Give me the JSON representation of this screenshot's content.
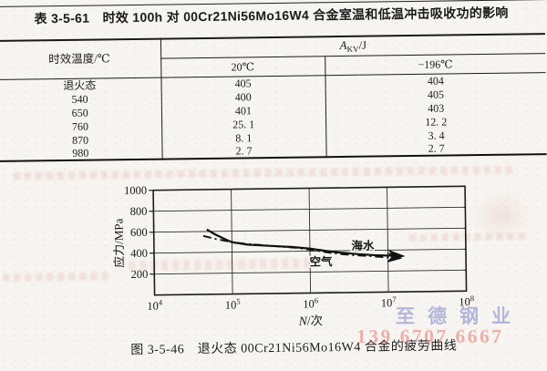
{
  "table": {
    "title": "表 3-5-61　时效 100h 对 00Cr21Ni56Mo16W4 合金室温和低温冲击吸收功的影响",
    "col1_header": "时效温度/℃",
    "akv": {
      "symbol": "A",
      "sub": "KV",
      "unit": "/J"
    },
    "subheaders": [
      "20℃",
      "−196℃"
    ],
    "rows": [
      {
        "temp": "退火态",
        "v20": "405",
        "vm196": "404"
      },
      {
        "temp": "540",
        "v20": "400",
        "vm196": "405"
      },
      {
        "temp": "650",
        "v20": "401",
        "vm196": "403"
      },
      {
        "temp": "760",
        "v20": "25. 1",
        "vm196": "12. 2"
      },
      {
        "temp": "870",
        "v20": "8. 1",
        "vm196": "3. 4"
      },
      {
        "temp": "980",
        "v20": "2. 7",
        "vm196": "2. 7"
      }
    ]
  },
  "figure": {
    "caption": "图 3-5-46　退火态 00Cr21Ni56Mo16W4 合金的疲劳曲线"
  },
  "watermark": {
    "company": "至德钢业",
    "phone": "139 6707 6667"
  },
  "chart_data": {
    "type": "line",
    "title": "",
    "xlabel": "N/次",
    "ylabel": "应力/MPa",
    "xscale": "log",
    "xlim": [
      10000,
      100000000
    ],
    "ylim": [
      0,
      1000
    ],
    "yticks": [
      200,
      400,
      600,
      800,
      1000
    ],
    "xtick_base": "10",
    "xtick_exponents": [
      4,
      5,
      6,
      7,
      8
    ],
    "grid": true,
    "legend_position": "on-curve",
    "series": [
      {
        "name": "海水",
        "style": "solid",
        "points": [
          [
            48000,
            620
          ],
          [
            60000,
            575
          ],
          [
            80000,
            528
          ],
          [
            100000,
            495
          ],
          [
            160000,
            470
          ],
          [
            300000,
            456
          ],
          [
            600000,
            441
          ],
          [
            1000000,
            424
          ],
          [
            1600000,
            400
          ],
          [
            2500000,
            381
          ],
          [
            4000000,
            366
          ],
          [
            7000000,
            352
          ],
          [
            12000000,
            345
          ],
          [
            15000000,
            342
          ]
        ]
      },
      {
        "name": "空气",
        "style": "dashdot",
        "points": [
          [
            43000,
            558
          ],
          [
            60000,
            530
          ],
          [
            90000,
            503
          ],
          [
            140000,
            480
          ],
          [
            300000,
            457
          ],
          [
            700000,
            431
          ],
          [
            1200000,
            404
          ],
          [
            2000000,
            376
          ],
          [
            3500000,
            357
          ],
          [
            6000000,
            344
          ],
          [
            10000000,
            330
          ],
          [
            14000000,
            322
          ]
        ]
      }
    ]
  }
}
